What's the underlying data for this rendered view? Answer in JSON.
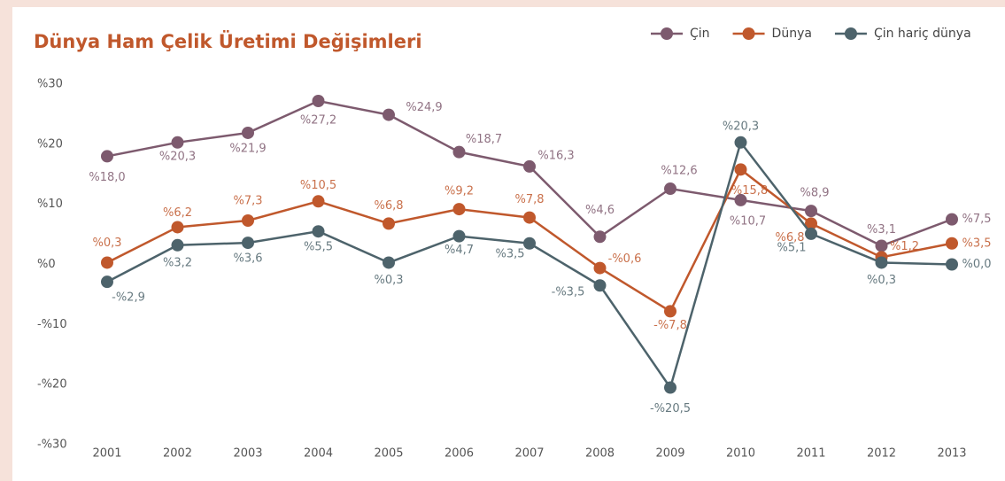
{
  "chart_data": {
    "type": "line",
    "title": "Dünya Ham Çelik Üretimi Değişimleri",
    "categories": [
      "2001",
      "2002",
      "2003",
      "2004",
      "2005",
      "2006",
      "2007",
      "2008",
      "2009",
      "2010",
      "2011",
      "2012",
      "2013"
    ],
    "series": [
      {
        "name": "Çin",
        "color": "#7d5a6e",
        "values": [
          18.0,
          20.3,
          21.9,
          27.2,
          24.9,
          18.7,
          16.3,
          4.6,
          12.6,
          10.7,
          8.9,
          3.1,
          7.5
        ],
        "value_labels": [
          "%18,0",
          "%20,3",
          "%21,9",
          "%27,2",
          "%24,9",
          "%18,7",
          "%16,3",
          "%4,6",
          "%12,6",
          "%10,7",
          "%8,9",
          "%3,1",
          "%7,5"
        ]
      },
      {
        "name": "Dünya",
        "color": "#c0582c",
        "values": [
          0.3,
          6.2,
          7.3,
          10.5,
          6.8,
          9.2,
          7.8,
          -0.6,
          -7.8,
          15.8,
          6.8,
          1.2,
          3.5
        ],
        "value_labels": [
          "%0,3",
          "%6,2",
          "%7,3",
          "%10,5",
          "%6,8",
          "%9,2",
          "%7,8",
          "-%0,6",
          "-%7,8",
          "%15,8",
          "%6,8",
          "%1,2",
          "%3,5"
        ]
      },
      {
        "name": "Çin hariç dünya",
        "color": "#4d636b",
        "values": [
          -2.9,
          3.2,
          3.6,
          5.5,
          0.3,
          4.7,
          3.5,
          -3.5,
          -20.5,
          20.3,
          5.1,
          0.3,
          0.0
        ],
        "value_labels": [
          "-%2,9",
          "%3,2",
          "%3,6",
          "%5,5",
          "%0,3",
          "%4,7",
          "%3,5",
          "-%3,5",
          "-%20,5",
          "%20,3",
          "%5,1",
          "%0,3",
          "%0,0"
        ]
      }
    ],
    "ylim": [
      -30,
      30
    ],
    "yticks": [
      {
        "value": -30,
        "label": "-%30"
      },
      {
        "value": -20,
        "label": "-%20"
      },
      {
        "value": -10,
        "label": "-%10"
      },
      {
        "value": 0,
        "label": "%0"
      },
      {
        "value": 10,
        "label": "%10"
      },
      {
        "value": 20,
        "label": "%20"
      },
      {
        "value": 30,
        "label": "%30"
      }
    ],
    "legend": "top-right"
  }
}
